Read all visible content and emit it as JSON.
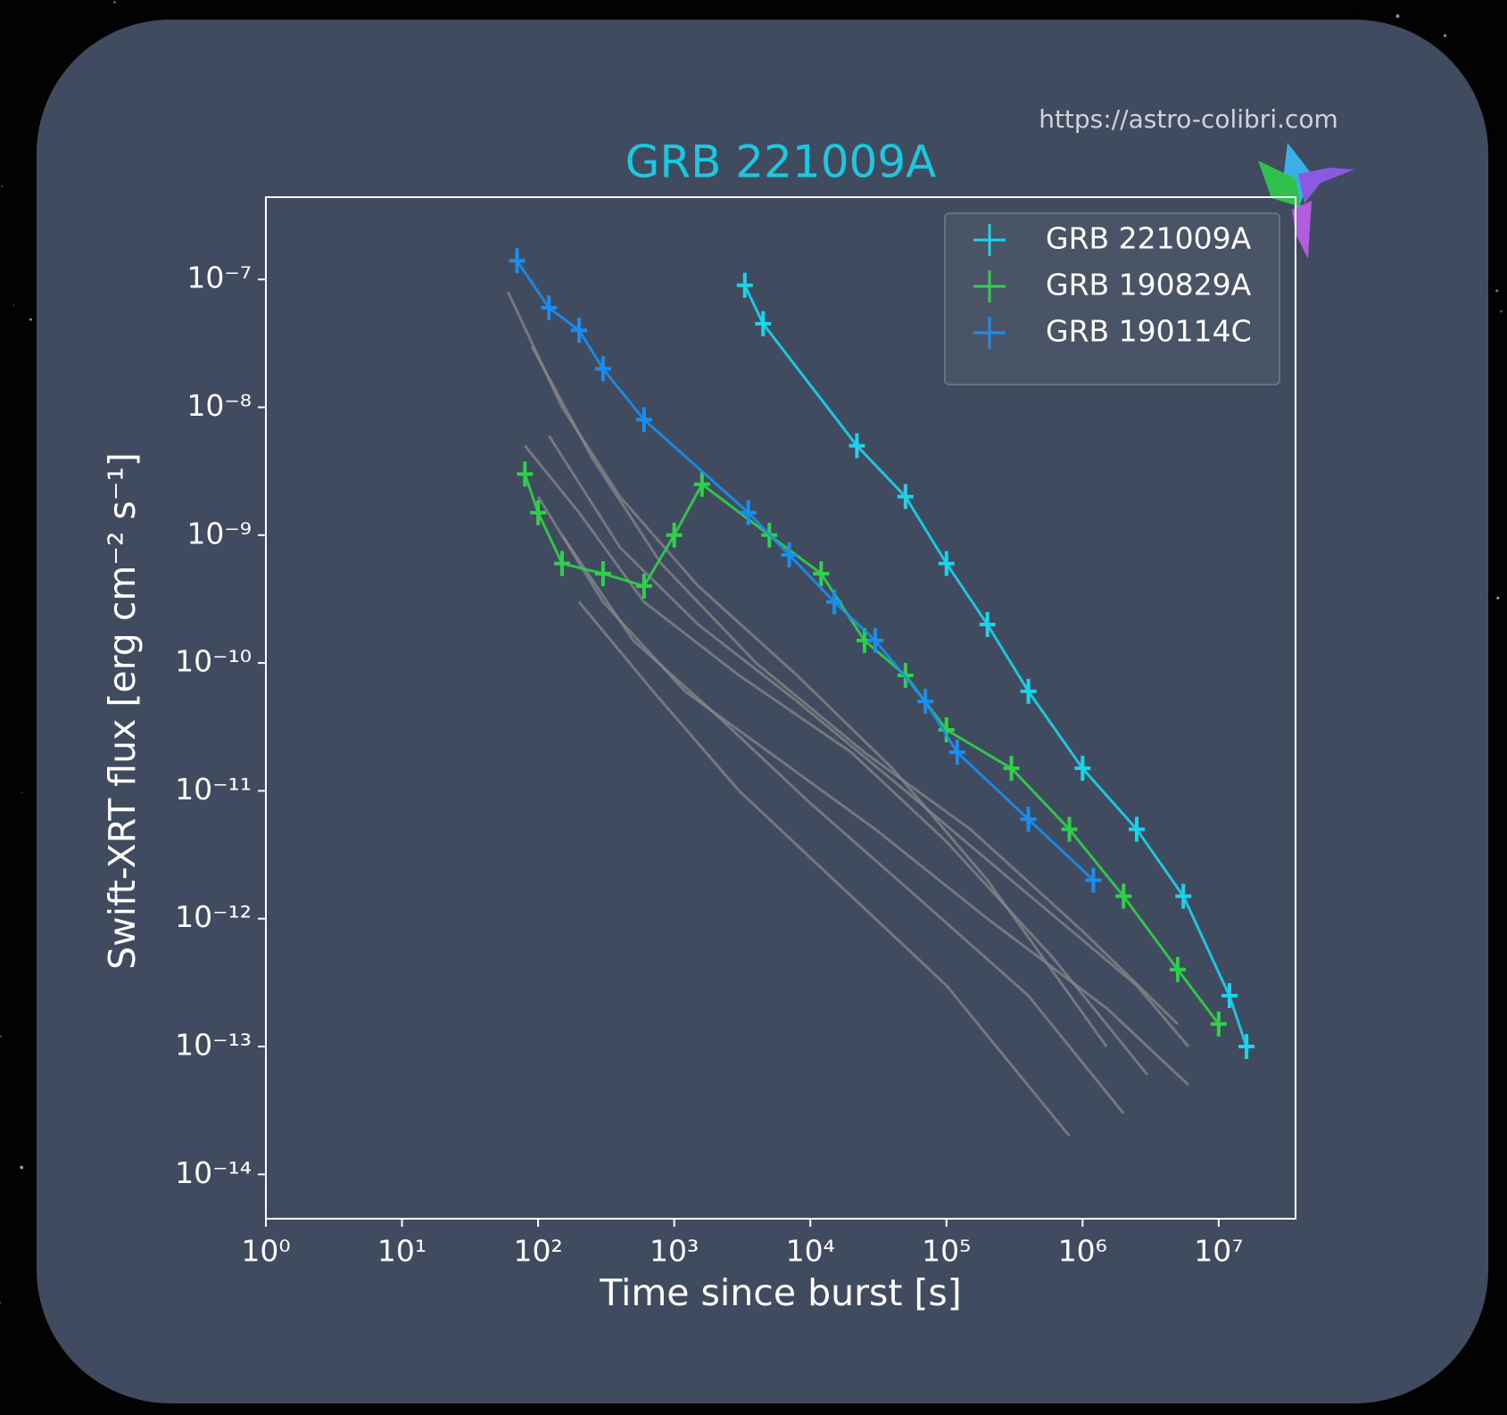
{
  "watermark": "https://astro-colibri.com",
  "chart_data": {
    "type": "line",
    "title": "GRB 221009A",
    "title_color": "#1cc8e0",
    "x_label": "Time since burst [s]",
    "y_label": "Swift-XRT flux [erg cm⁻² s⁻¹]",
    "log_x": true,
    "log_y": true,
    "xlim": [
      1,
      36700000
    ],
    "ylim": [
      4.5e-15,
      4.4e-07
    ],
    "xticks": [
      {
        "value": 1,
        "label": "10⁰"
      },
      {
        "value": 10,
        "label": "10¹"
      },
      {
        "value": 100,
        "label": "10²"
      },
      {
        "value": 1000,
        "label": "10³"
      },
      {
        "value": 10000,
        "label": "10⁴"
      },
      {
        "value": 100000,
        "label": "10⁵"
      },
      {
        "value": 1000000,
        "label": "10⁶"
      },
      {
        "value": 10000000,
        "label": "10⁷"
      }
    ],
    "yticks": [
      {
        "value": 1e-14,
        "label": "10⁻¹⁴"
      },
      {
        "value": 1e-13,
        "label": "10⁻¹³"
      },
      {
        "value": 1e-12,
        "label": "10⁻¹²"
      },
      {
        "value": 1e-11,
        "label": "10⁻¹¹"
      },
      {
        "value": 1e-10,
        "label": "10⁻¹⁰"
      },
      {
        "value": 1e-09,
        "label": "10⁻⁹"
      },
      {
        "value": 1e-08,
        "label": "10⁻⁸"
      },
      {
        "value": 1e-07,
        "label": "10⁻⁷"
      }
    ],
    "legend": "upper right",
    "background_series": [
      {
        "color": "#8a8a8a",
        "x": [
          60,
          150,
          400,
          1500,
          8000,
          40000,
          200000,
          1500000
        ],
        "values": [
          8e-08,
          1e-08,
          2e-09,
          4e-10,
          8e-11,
          1.5e-11,
          2e-12,
          1e-13
        ]
      },
      {
        "color": "#8a8a8a",
        "x": [
          80,
          200,
          600,
          3000,
          20000,
          100000,
          600000,
          3000000
        ],
        "values": [
          5e-09,
          1.5e-09,
          3e-10,
          8e-11,
          2e-11,
          4e-12,
          5e-13,
          6e-14
        ]
      },
      {
        "color": "#8a8a8a",
        "x": [
          100,
          300,
          1200,
          5000,
          30000,
          200000,
          1500000,
          6000000
        ],
        "values": [
          2e-09,
          3e-10,
          6e-11,
          2e-11,
          5e-12,
          1e-12,
          2e-13,
          5e-14
        ]
      },
      {
        "color": "#8a8a8a",
        "x": [
          150,
          500,
          2000,
          10000,
          60000,
          400000,
          2000000
        ],
        "values": [
          1e-09,
          1.5e-10,
          4e-11,
          8e-12,
          1.5e-12,
          2.5e-13,
          3e-14
        ]
      },
      {
        "color": "#8a8a8a",
        "x": [
          90,
          250,
          800,
          4000,
          25000,
          150000,
          1000000,
          5000000
        ],
        "values": [
          3e-08,
          4e-09,
          6e-10,
          1e-10,
          2e-11,
          5e-12,
          8e-13,
          1.5e-13
        ]
      },
      {
        "color": "#8a8a8a",
        "x": [
          200,
          700,
          3000,
          15000,
          100000,
          800000
        ],
        "values": [
          3e-10,
          6e-11,
          1e-11,
          2e-12,
          3e-13,
          2e-14
        ]
      },
      {
        "color": "#8a8a8a",
        "x": [
          120,
          400,
          1500,
          8000,
          50000,
          300000,
          2500000,
          6000000
        ],
        "values": [
          6e-09,
          8e-10,
          2e-10,
          5e-11,
          1e-11,
          2e-12,
          3e-13,
          1e-13
        ]
      }
    ],
    "series": [
      {
        "name": "GRB 221009A",
        "color": "#1ad4ec",
        "x": [
          3300,
          4500,
          22000,
          50000,
          100000,
          200000,
          400000,
          1000000,
          2500000,
          5500000,
          12000000,
          16000000
        ],
        "values": [
          9e-08,
          4.5e-08,
          5e-09,
          2e-09,
          6e-10,
          2e-10,
          6e-11,
          1.5e-11,
          5e-12,
          1.5e-12,
          2.5e-13,
          1e-13
        ]
      },
      {
        "name": "GRB 190829A",
        "color": "#2fd14a",
        "x": [
          80,
          100,
          150,
          300,
          600,
          1000,
          1600,
          5000,
          12000,
          25000,
          50000,
          100000,
          300000,
          800000,
          2000000,
          5000000,
          10000000
        ],
        "values": [
          3e-09,
          1.5e-09,
          6e-10,
          5e-10,
          4e-10,
          1e-09,
          2.5e-09,
          1e-09,
          5e-10,
          1.5e-10,
          8e-11,
          3e-11,
          1.5e-11,
          5e-12,
          1.5e-12,
          4e-13,
          1.5e-13
        ]
      },
      {
        "name": "GRB 190114C",
        "color": "#1a8ef0",
        "x": [
          70,
          120,
          200,
          300,
          600,
          3500,
          7000,
          15000,
          30000,
          70000,
          120000,
          400000,
          1200000
        ],
        "values": [
          1.4e-07,
          6e-08,
          4e-08,
          2e-08,
          8e-09,
          1.5e-09,
          7e-10,
          3e-10,
          1.5e-10,
          5e-11,
          2e-11,
          6e-12,
          2e-12
        ]
      }
    ]
  }
}
